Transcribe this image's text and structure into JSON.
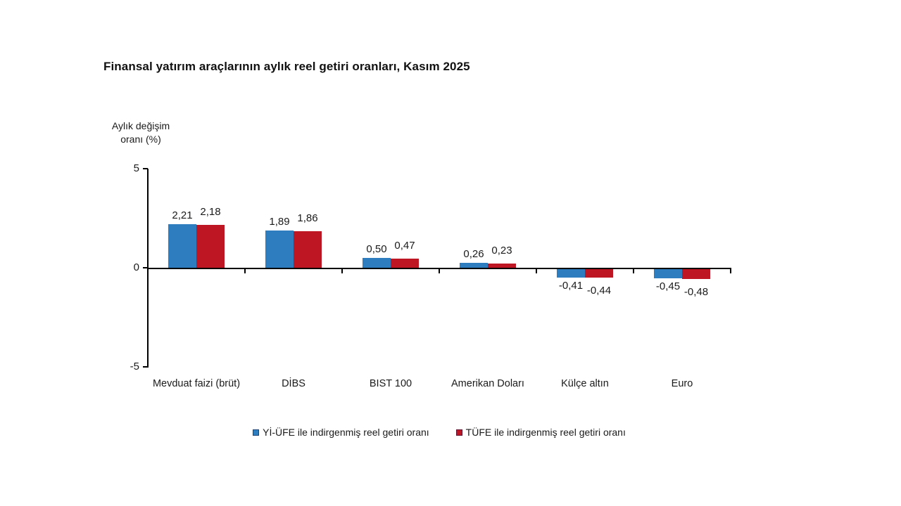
{
  "title": "Finansal yatırım araçlarının aylık reel getiri oranları, Kasım 2025",
  "y_axis": {
    "unit_line1": "Aylık değişim",
    "unit_line2": "oranı (%)"
  },
  "chart_data": {
    "type": "bar",
    "title": "Finansal yatırım araçlarının aylık reel getiri oranları, Kasım 2025",
    "xlabel": "",
    "ylabel": "Aylık değişim oranı (%)",
    "ylim": [
      -5,
      5
    ],
    "yticks": [
      5,
      0,
      -5
    ],
    "grid": false,
    "legend_position": "bottom",
    "categories": [
      "Mevduat faizi (brüt)",
      "DİBS",
      "BIST 100",
      "Amerikan Doları",
      "Külçe altın",
      "Euro"
    ],
    "series": [
      {
        "name": "Yİ-ÜFE ile indirgenmiş reel getiri oranı",
        "color": "#2e7ebf",
        "values": [
          2.21,
          1.89,
          0.5,
          0.26,
          -0.41,
          -0.45
        ],
        "labels": [
          "2,21",
          "1,89",
          "0,50",
          "0,26",
          "-0,41",
          "-0,45"
        ]
      },
      {
        "name": "TÜFE ile indirgenmiş reel getiri oranı",
        "color": "#be1622",
        "values": [
          2.18,
          1.86,
          0.47,
          0.23,
          -0.44,
          -0.48
        ],
        "labels": [
          "2,18",
          "1,86",
          "0,47",
          "0,23",
          "-0,44",
          "-0,48"
        ]
      }
    ]
  }
}
